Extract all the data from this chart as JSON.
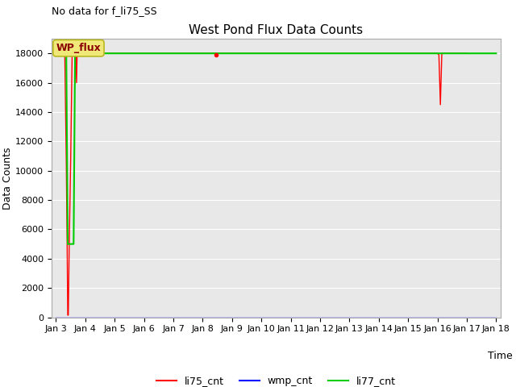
{
  "title": "West Pond Flux Data Counts",
  "no_data_text": "No data for f_li75_SS",
  "legend_box_text": "WP_flux",
  "xlabel": "Time",
  "ylabel": "Data Counts",
  "ylim": [
    0,
    19000
  ],
  "yticks": [
    0,
    2000,
    4000,
    6000,
    8000,
    10000,
    12000,
    14000,
    16000,
    18000
  ],
  "background_color": "#e8e8e8",
  "fig_background": "#ffffff",
  "li75_cnt": {
    "x": [
      3.0,
      3.3,
      3.35,
      3.38,
      3.4,
      3.42,
      3.45,
      3.5,
      3.55,
      3.6,
      3.65,
      3.68,
      3.7,
      3.72,
      3.75,
      3.8,
      3.85,
      4.0,
      4.05,
      4.1,
      4.5,
      8.45,
      16.0,
      16.05,
      16.1,
      16.15,
      16.2,
      16.3,
      16.5,
      17.0
    ],
    "y": [
      18000,
      18000,
      10700,
      5000,
      150,
      150,
      4900,
      10700,
      18000,
      18000,
      18000,
      18000,
      16000,
      18000,
      18000,
      18000,
      18000,
      18000,
      18000,
      18000,
      18000,
      18000,
      18000,
      17900,
      14500,
      18000,
      18000,
      18000,
      18000,
      18000
    ],
    "color": "#ff0000",
    "label": "li75_cnt"
  },
  "wmp_cnt": {
    "x": [
      3.0,
      18.0
    ],
    "y": [
      0,
      0
    ],
    "color": "#0000ff",
    "label": "wmp_cnt"
  },
  "li77_cnt": {
    "x": [
      3.0,
      3.35,
      3.4,
      3.45,
      3.5,
      3.55,
      3.6,
      3.65,
      3.7,
      4.0,
      18.0
    ],
    "y": [
      18000,
      18000,
      5000,
      5000,
      5000,
      5000,
      5000,
      18000,
      18000,
      18000,
      18000
    ],
    "color": "#00cc00",
    "label": "li77_cnt"
  },
  "xtick_positions": [
    3,
    4,
    5,
    6,
    7,
    8,
    9,
    10,
    11,
    12,
    13,
    14,
    15,
    16,
    17,
    18
  ],
  "xtick_labels": [
    "Jan 3",
    "Jan 4",
    "Jan 5",
    "Jan 6",
    "Jan 7",
    "Jan 8",
    "Jan 9",
    "Jan 10",
    "Jan 11",
    "Jan 12",
    "Jan 13",
    "Jan 14",
    "Jan 15",
    "Jan 16",
    "Jan 17",
    "Jan 18"
  ],
  "xlim": [
    2.85,
    18.15
  ],
  "small_dot_x": 8.45,
  "small_dot_y": 17900,
  "title_fontsize": 11,
  "axis_fontsize": 9,
  "tick_fontsize": 8
}
